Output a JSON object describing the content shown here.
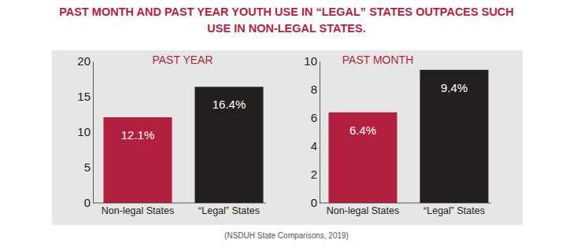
{
  "title": [
    "PAST MONTH AND PAST YEAR YOUTH USE IN “LEGAL” STATES OUTPACES SUCH",
    "USE IN NON-LEGAL STATES."
  ],
  "source": "(NSDUH State Comparisons, 2019)",
  "chart_data": [
    {
      "type": "bar",
      "title": "PAST YEAR",
      "categories": [
        "Non-legal States",
        "“Legal” States"
      ],
      "values": [
        12.1,
        16.4
      ],
      "value_labels": [
        "12.1%",
        "16.4%"
      ],
      "colors": [
        "#b31f3f",
        "#231f20"
      ],
      "ylim": [
        0,
        20
      ],
      "yticks": [
        0,
        5,
        10,
        15,
        20
      ],
      "grid": false,
      "data_labels": true
    },
    {
      "type": "bar",
      "title": "PAST MONTH",
      "categories": [
        "Non-legal States",
        "“Legal” States"
      ],
      "values": [
        6.4,
        9.4
      ],
      "value_labels": [
        "6.4%",
        "9.4%"
      ],
      "colors": [
        "#b31f3f",
        "#231f20"
      ],
      "ylim": [
        0,
        10
      ],
      "yticks": [
        0,
        2,
        4,
        6,
        8,
        10
      ],
      "grid": false,
      "data_labels": true
    }
  ]
}
